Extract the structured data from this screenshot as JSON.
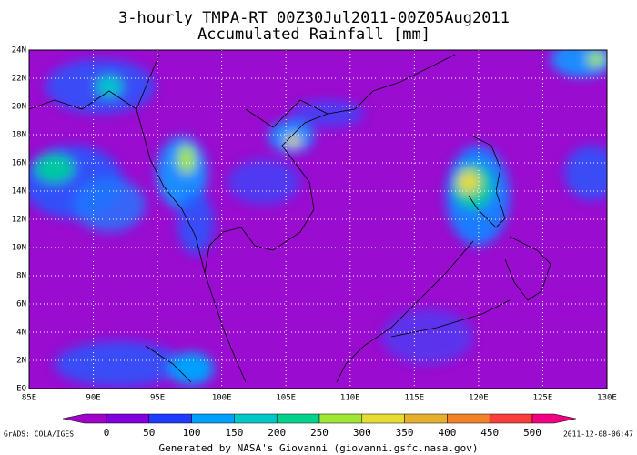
{
  "map": {
    "title": "3-hourly TMPA-RT 00Z30Jul2011-00Z05Aug2011",
    "subtitle": "Accumulated Rainfall [mm]",
    "lon_ticks": [
      {
        "value": 85,
        "label": "85E"
      },
      {
        "value": 90,
        "label": "90E"
      },
      {
        "value": 95,
        "label": "95E"
      },
      {
        "value": 100,
        "label": "100E"
      },
      {
        "value": 105,
        "label": "105E"
      },
      {
        "value": 110,
        "label": "110E"
      },
      {
        "value": 115,
        "label": "115E"
      },
      {
        "value": 120,
        "label": "120E"
      },
      {
        "value": 125,
        "label": "125E"
      },
      {
        "value": 130,
        "label": "130E"
      }
    ],
    "lat_ticks": [
      {
        "value": 0,
        "label": "EQ"
      },
      {
        "value": 2,
        "label": "2N"
      },
      {
        "value": 4,
        "label": "4N"
      },
      {
        "value": 6,
        "label": "6N"
      },
      {
        "value": 8,
        "label": "8N"
      },
      {
        "value": 10,
        "label": "10N"
      },
      {
        "value": 12,
        "label": "12N"
      },
      {
        "value": 14,
        "label": "14N"
      },
      {
        "value": 16,
        "label": "16N"
      },
      {
        "value": 18,
        "label": "18N"
      },
      {
        "value": 20,
        "label": "20N"
      },
      {
        "value": 22,
        "label": "22N"
      },
      {
        "value": 24,
        "label": "24N"
      }
    ],
    "colorbar": {
      "ticks": [
        0,
        50,
        100,
        150,
        200,
        250,
        300,
        350,
        400,
        450,
        500
      ],
      "colors": [
        "#a000c8",
        "#8200dc",
        "#1e3cff",
        "#00a0ff",
        "#00c8c8",
        "#00d28c",
        "#a0e632",
        "#e6dc32",
        "#e6af2d",
        "#f08228",
        "#fa3c3c",
        "#f00082"
      ]
    },
    "credit_left": "GrADS: COLA/IGES",
    "timestamp": "2011-12-08-06:47",
    "footer": "Generated by NASA's Giovanni (giovanni.gsfc.nasa.gov)"
  }
}
